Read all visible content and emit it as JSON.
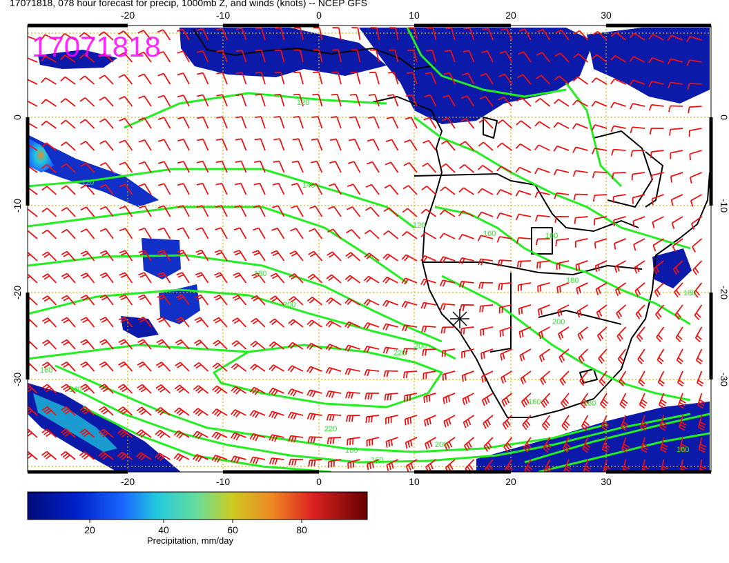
{
  "title": "17071818, 078 hour forecast for precip, 1000mb Z, and winds (knots) -- NCEP GFS",
  "stamp": "17071818",
  "colors": {
    "contour": "#22ee22",
    "barb": "#ee1111",
    "coast": "#000000",
    "grid": "#d9b400",
    "stamp": "#ff00ff"
  },
  "lon_ticks": [
    "-20",
    "-10",
    "0",
    "10",
    "20",
    "30"
  ],
  "lat_ticks": [
    "0",
    "-10",
    "-20",
    "-30"
  ],
  "contour_labels": [
    "120",
    "120",
    "140",
    "120",
    "160",
    "160",
    "180",
    "180",
    "200",
    "200",
    "220",
    "220",
    "200",
    "180",
    "160",
    "160",
    "140",
    "200",
    "160",
    "160",
    "180",
    "160"
  ],
  "marker": "station-cross",
  "colorbar": {
    "ticks": [
      "20",
      "40",
      "60",
      "80"
    ],
    "title": "Precipitation, mm/day",
    "range": [
      0,
      100
    ]
  }
}
